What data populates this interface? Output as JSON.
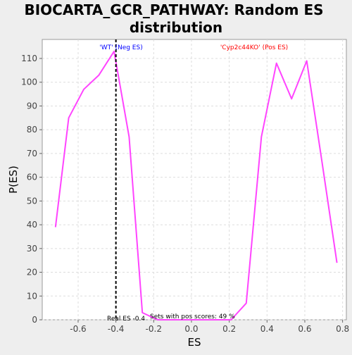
{
  "chart_data": {
    "type": "line",
    "title_lines": [
      "BIOCARTA_GCR_PATHWAY: Random ES",
      "distribution"
    ],
    "xlabel": "ES",
    "ylabel": "P(ES)",
    "xlim": [
      -0.79,
      0.82
    ],
    "ylim": [
      0,
      118
    ],
    "xticks": [
      -0.6,
      -0.4,
      -0.2,
      0.0,
      0.2,
      0.4,
      0.6,
      0.8
    ],
    "xtick_labels": [
      "-0.6",
      "-0.4",
      "-0.2",
      "0.0",
      "0.2",
      "0.4",
      "0.6",
      "0.8"
    ],
    "yticks": [
      0,
      10,
      20,
      30,
      40,
      50,
      60,
      70,
      80,
      90,
      100,
      110
    ],
    "ytick_labels": [
      "0",
      "10",
      "20",
      "30",
      "40",
      "50",
      "60",
      "70",
      "80",
      "90",
      "100",
      "110"
    ],
    "grid": true,
    "series": [
      {
        "color": "#ff44ff",
        "x": [
          -0.72,
          -0.65,
          -0.57,
          -0.49,
          -0.41,
          -0.33,
          -0.26,
          -0.18,
          -0.1,
          -0.02,
          0.06,
          0.13,
          0.21,
          0.29,
          0.37,
          0.45,
          0.53,
          0.61,
          0.69,
          0.77
        ],
        "y": [
          39,
          85,
          97,
          103,
          113,
          77,
          3,
          0,
          0,
          0,
          0,
          0,
          0,
          7,
          77,
          108,
          93,
          109,
          67,
          24
        ]
      }
    ],
    "real_es": -0.4,
    "annotations": {
      "neg_label": "'WT' (Neg ES)",
      "pos_label": "'Cyp2c44KO' (Pos ES)",
      "real_es_label": "Real ES -0.4",
      "pos_scores_label": "Sets with pos scores: 49 %"
    },
    "colors": {
      "line": "#ff44ff",
      "neg_label": "#0000ff",
      "pos_label": "#ff0000",
      "background": "#eeeeee",
      "plot_bg": "#ffffff",
      "grid": "#dddddd"
    }
  }
}
